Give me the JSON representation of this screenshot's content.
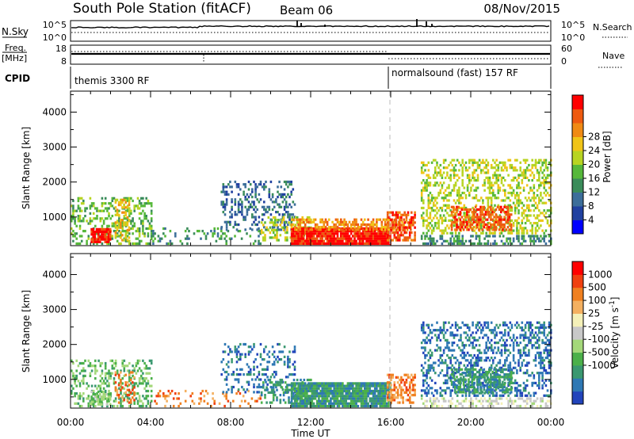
{
  "header": {
    "title": "South Pole Station (fitACF)",
    "beam": "Beam 06",
    "date": "08/Nov/2015"
  },
  "strips": {
    "nsky_label": "N.Sky",
    "nsearch_label": "N.Search",
    "nsky_ticks": [
      "10^5",
      "10^0"
    ],
    "nsearch_ticks": [
      "10^5",
      "10^0"
    ],
    "freq_label": "Freq.",
    "freq_unit": "[MHz]",
    "freq_ticks": [
      "18",
      "8"
    ],
    "nave_label": "Nave",
    "nave_ticks": [
      "60",
      "0"
    ],
    "cpid_label": "CPID",
    "cpid_segments": [
      {
        "label": "themis 3300 RF",
        "start_hour": 0,
        "end_hour": 16
      },
      {
        "label": "normalsound (fast) 157 RF",
        "start_hour": 16,
        "end_hour": 24
      }
    ]
  },
  "chart_data": [
    {
      "type": "heatmap",
      "name": "power-panel",
      "ylabel": "Slant Range [km]",
      "xlabel": "",
      "x_ticks": [
        "00:00",
        "04:00",
        "08:00",
        "12:00",
        "16:00",
        "20:00",
        "00:00"
      ],
      "xlim_hours": [
        0,
        24
      ],
      "y_ticks": [
        1000,
        2000,
        3000,
        4000
      ],
      "ylim": [
        180,
        4600
      ],
      "colorbar": {
        "label": "Power [dB]",
        "ticks": [
          "4",
          "8",
          "12",
          "16",
          "20",
          "24",
          "28"
        ],
        "colors": [
          "#0000ff",
          "#2040a0",
          "#3c6e9a",
          "#3a8c5a",
          "#56b83a",
          "#b8d422",
          "#f0c418",
          "#f08a14",
          "#ee5a10",
          "#ff0000"
        ]
      },
      "regions": [
        {
          "h0": 0.0,
          "h1": 4.0,
          "r0": 200,
          "r1": 1500,
          "level": 4,
          "density": 0.35
        },
        {
          "h0": 1.0,
          "h1": 2.0,
          "r0": 250,
          "r1": 650,
          "level": 9,
          "density": 0.85
        },
        {
          "h0": 2.2,
          "h1": 2.9,
          "r0": 300,
          "r1": 1500,
          "level": 6,
          "density": 0.45
        },
        {
          "h0": 4.0,
          "h1": 9.5,
          "r0": 200,
          "r1": 700,
          "level": 3,
          "density": 0.18
        },
        {
          "h0": 7.5,
          "h1": 11.2,
          "r0": 600,
          "r1": 2000,
          "level": 2,
          "density": 0.28
        },
        {
          "h0": 9.5,
          "h1": 12.0,
          "r0": 300,
          "r1": 1000,
          "level": 5,
          "density": 0.35
        },
        {
          "h0": 11.0,
          "h1": 16.0,
          "r0": 200,
          "r1": 700,
          "level": 9,
          "density": 0.95
        },
        {
          "h0": 11.0,
          "h1": 17.0,
          "r0": 600,
          "r1": 900,
          "level": 7,
          "density": 0.6
        },
        {
          "h0": 15.8,
          "h1": 17.2,
          "r0": 300,
          "r1": 1100,
          "level": 8,
          "density": 0.6
        },
        {
          "h0": 17.5,
          "h1": 24.0,
          "r0": 500,
          "r1": 2600,
          "level": 5,
          "density": 0.38
        },
        {
          "h0": 19.0,
          "h1": 22.0,
          "r0": 600,
          "r1": 1300,
          "level": 8,
          "density": 0.6
        },
        {
          "h0": 17.5,
          "h1": 24.0,
          "r0": 200,
          "r1": 450,
          "level": 3,
          "density": 0.45
        }
      ]
    },
    {
      "type": "heatmap",
      "name": "velocity-panel",
      "ylabel": "Slant Range [km]",
      "xlabel": "Time UT",
      "x_ticks": [
        "00:00",
        "04:00",
        "08:00",
        "12:00",
        "16:00",
        "20:00",
        "00:00"
      ],
      "xlim_hours": [
        0,
        24
      ],
      "y_ticks": [
        1000,
        2000,
        3000,
        4000
      ],
      "ylim": [
        180,
        4600
      ],
      "colorbar": {
        "label": "Velocity [m s^-1]",
        "ticks": [
          "1000",
          "500",
          "100",
          "25",
          "-25",
          "-100",
          "-500",
          "-1000"
        ],
        "colors": [
          "#2244bb",
          "#2e78b4",
          "#3a9870",
          "#4bb04a",
          "#a4d87a",
          "#c8c8c8",
          "#f4f0b8",
          "#f4b060",
          "#f08020",
          "#f04010",
          "#ff0000"
        ]
      },
      "regions": [
        {
          "h0": 0.0,
          "h1": 4.0,
          "r0": 200,
          "r1": 1500,
          "level": 3,
          "density": 0.35
        },
        {
          "h0": 1.0,
          "h1": 2.0,
          "r0": 250,
          "r1": 650,
          "level": 4,
          "density": 0.6
        },
        {
          "h0": 2.2,
          "h1": 3.2,
          "r0": 300,
          "r1": 1200,
          "level": 8,
          "density": 0.3
        },
        {
          "h0": 4.0,
          "h1": 9.5,
          "r0": 200,
          "r1": 700,
          "level": 8,
          "density": 0.15
        },
        {
          "h0": 7.5,
          "h1": 11.2,
          "r0": 600,
          "r1": 2000,
          "level": 1,
          "density": 0.25
        },
        {
          "h0": 9.5,
          "h1": 12.0,
          "r0": 300,
          "r1": 1000,
          "level": 2,
          "density": 0.3
        },
        {
          "h0": 11.0,
          "h1": 16.0,
          "r0": 200,
          "r1": 900,
          "level": 2,
          "density": 0.9
        },
        {
          "h0": 15.8,
          "h1": 17.2,
          "r0": 300,
          "r1": 1100,
          "level": 8,
          "density": 0.5
        },
        {
          "h0": 17.5,
          "h1": 24.0,
          "r0": 500,
          "r1": 2600,
          "level": 1,
          "density": 0.38
        },
        {
          "h0": 19.0,
          "h1": 22.0,
          "r0": 600,
          "r1": 1300,
          "level": 2,
          "density": 0.6
        },
        {
          "h0": 17.5,
          "h1": 24.0,
          "r0": 200,
          "r1": 450,
          "level": 5,
          "density": 0.4
        }
      ]
    }
  ]
}
